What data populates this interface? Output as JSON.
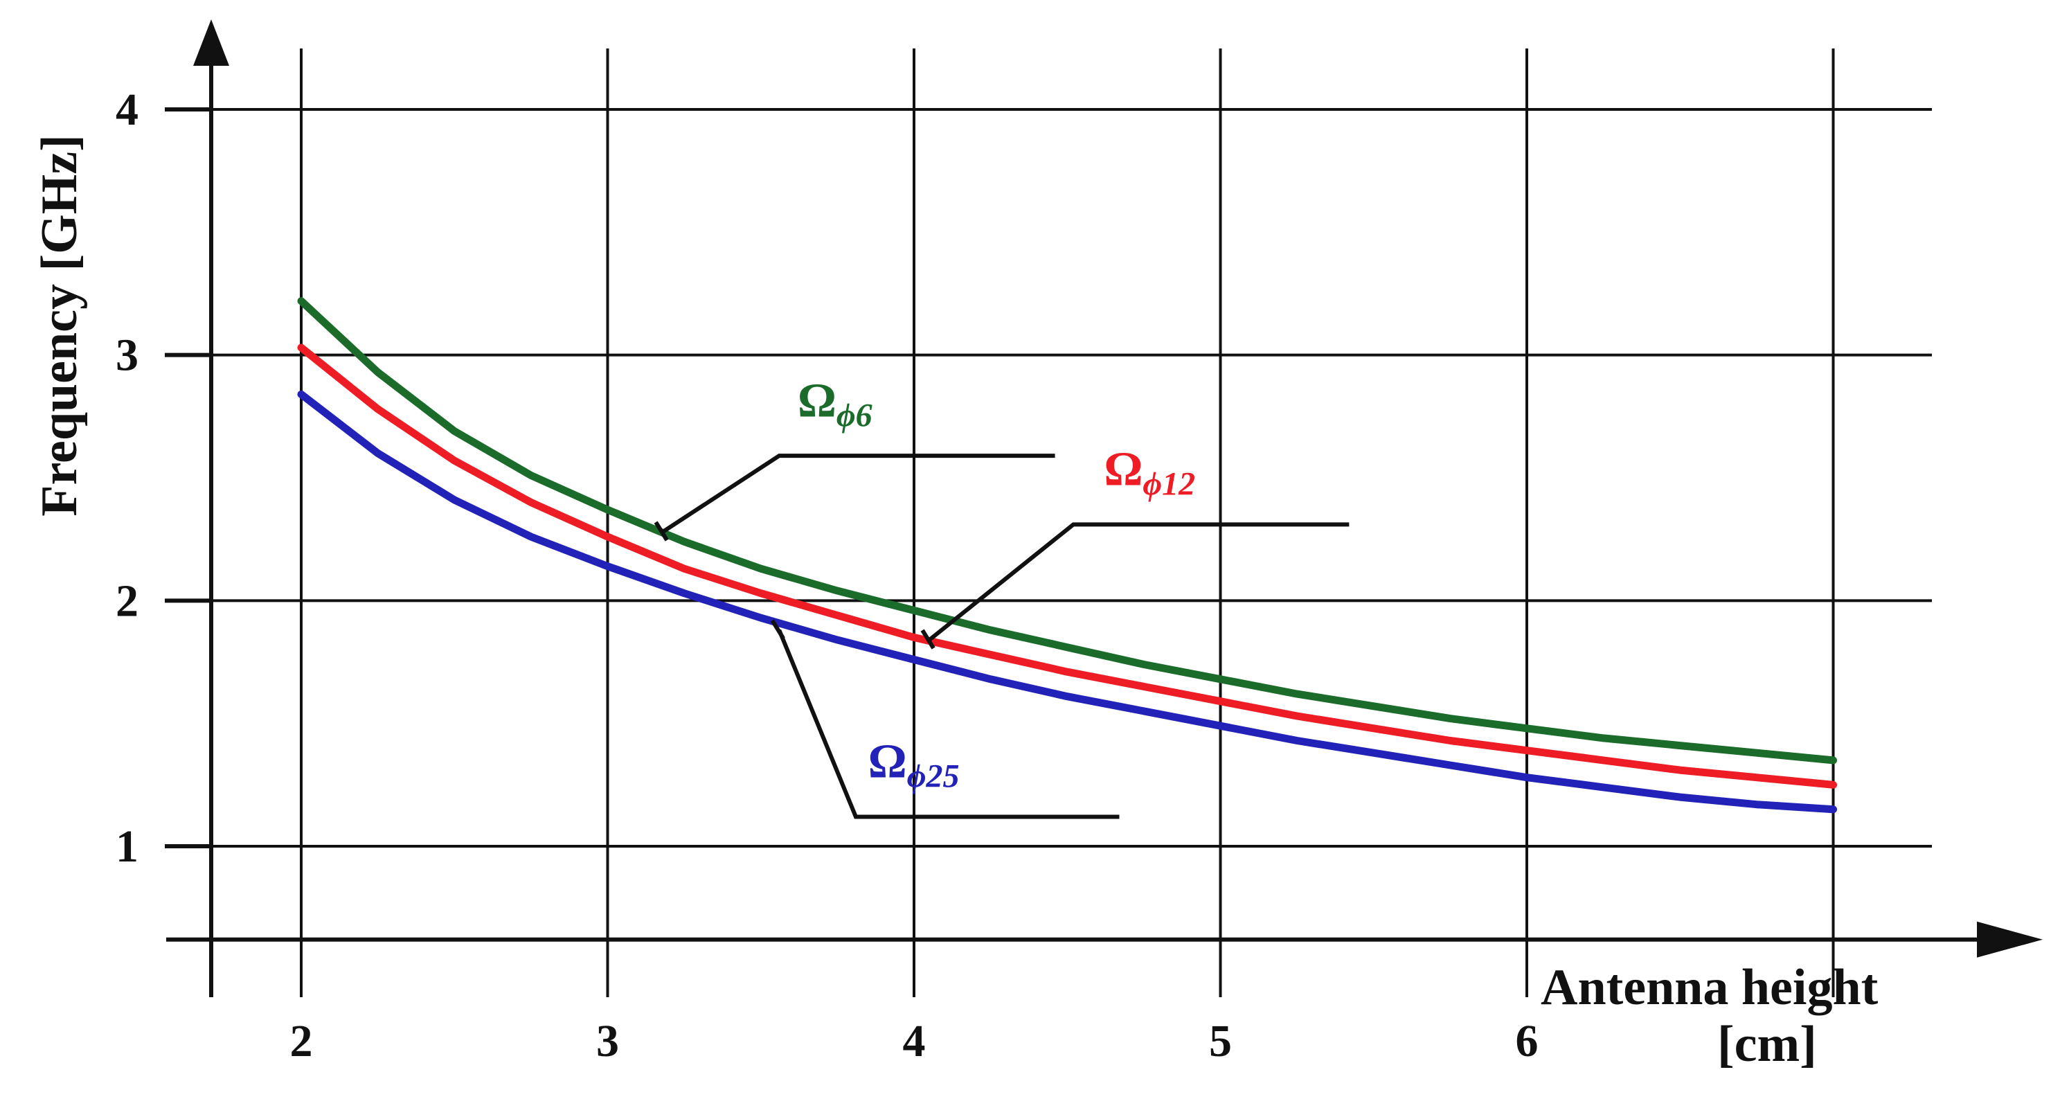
{
  "chart_data": {
    "type": "line",
    "xlabel": "Antenna height",
    "xunit": "[cm]",
    "ylabel": "Frequency [GHz]",
    "x_ticks": [
      2,
      3,
      4,
      5,
      6
    ],
    "y_ticks": [
      1,
      2,
      3,
      4
    ],
    "xlim": [
      1.7,
      7.0
    ],
    "ylim": [
      0.62,
      4.4
    ],
    "grid": true,
    "legend": "inline annotations with leader lines",
    "series": [
      {
        "name": "Ω",
        "subscript": "ϕ6",
        "color": "#1b6b2a",
        "x": [
          2.0,
          2.25,
          2.5,
          2.75,
          3.0,
          3.25,
          3.5,
          3.75,
          4.0,
          4.25,
          4.5,
          4.75,
          5.0,
          5.25,
          5.5,
          5.75,
          6.0,
          6.25,
          6.5,
          6.75,
          7.0
        ],
        "y": [
          3.22,
          2.93,
          2.69,
          2.51,
          2.37,
          2.24,
          2.13,
          2.04,
          1.96,
          1.88,
          1.81,
          1.74,
          1.68,
          1.62,
          1.57,
          1.52,
          1.48,
          1.44,
          1.41,
          1.38,
          1.35
        ]
      },
      {
        "name": "Ω",
        "subscript": "ϕ12",
        "color": "#ee1c24",
        "x": [
          2.0,
          2.25,
          2.5,
          2.75,
          3.0,
          3.25,
          3.5,
          3.75,
          4.0,
          4.25,
          4.5,
          4.75,
          5.0,
          5.25,
          5.5,
          5.75,
          6.0,
          6.25,
          6.5,
          6.75,
          7.0
        ],
        "y": [
          3.03,
          2.78,
          2.57,
          2.4,
          2.26,
          2.13,
          2.03,
          1.94,
          1.85,
          1.78,
          1.71,
          1.65,
          1.59,
          1.53,
          1.48,
          1.43,
          1.39,
          1.35,
          1.31,
          1.28,
          1.25
        ]
      },
      {
        "name": "Ω",
        "subscript": "ϕ25",
        "color": "#2222b8",
        "x": [
          2.0,
          2.25,
          2.5,
          2.75,
          3.0,
          3.25,
          3.5,
          3.75,
          4.0,
          4.25,
          4.5,
          4.75,
          5.0,
          5.25,
          5.5,
          5.75,
          6.0,
          6.25,
          6.5,
          6.75,
          7.0
        ],
        "y": [
          2.84,
          2.6,
          2.41,
          2.26,
          2.14,
          2.03,
          1.93,
          1.84,
          1.76,
          1.68,
          1.61,
          1.55,
          1.49,
          1.43,
          1.38,
          1.33,
          1.28,
          1.24,
          1.2,
          1.17,
          1.15
        ]
      }
    ],
    "annotations": [
      {
        "series_index": 0,
        "point": [
          3.18,
          2.28
        ],
        "elbow": [
          3.56,
          2.59
        ],
        "end": [
          4.46,
          2.59
        ],
        "label_at": [
          3.62,
          2.75
        ]
      },
      {
        "series_index": 1,
        "point": [
          4.05,
          1.84
        ],
        "elbow": [
          4.52,
          2.31
        ],
        "end": [
          5.42,
          2.31
        ],
        "label_at": [
          4.62,
          2.47
        ]
      },
      {
        "series_index": 2,
        "point": [
          3.56,
          1.88
        ],
        "elbow": [
          3.81,
          1.12
        ],
        "end": [
          4.67,
          1.12
        ],
        "label_at": [
          3.85,
          1.28
        ]
      }
    ]
  }
}
